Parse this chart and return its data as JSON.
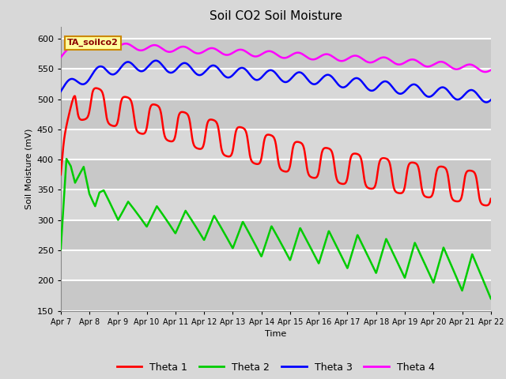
{
  "title": "Soil CO2 Soil Moisture",
  "xlabel": "Time",
  "ylabel": "Soil Moisture (mV)",
  "ylim": [
    150,
    620
  ],
  "yticks": [
    150,
    200,
    250,
    300,
    350,
    400,
    450,
    500,
    550,
    600
  ],
  "annotation": "TA_soilco2",
  "background_color": "#d8d8d8",
  "plot_bg_color": "#d8d8d8",
  "grid_color": "#ffffff",
  "colors": {
    "theta1": "#ff0000",
    "theta2": "#00cc00",
    "theta3": "#0000ff",
    "theta4": "#ff00ff"
  },
  "xtick_labels": [
    "Apr 7",
    "Apr 8",
    "Apr 9",
    "Apr 10",
    "Apr 11",
    "Apr 12",
    "Apr 13",
    "Apr 14",
    "Apr 15",
    "Apr 16",
    "Apr 17",
    "Apr 18",
    "Apr 19",
    "Apr 20",
    "Apr 21",
    "Apr 22"
  ],
  "legend_labels": [
    "Theta 1",
    "Theta 2",
    "Theta 3",
    "Theta 4"
  ],
  "figsize": [
    6.4,
    4.8
  ],
  "dpi": 100
}
